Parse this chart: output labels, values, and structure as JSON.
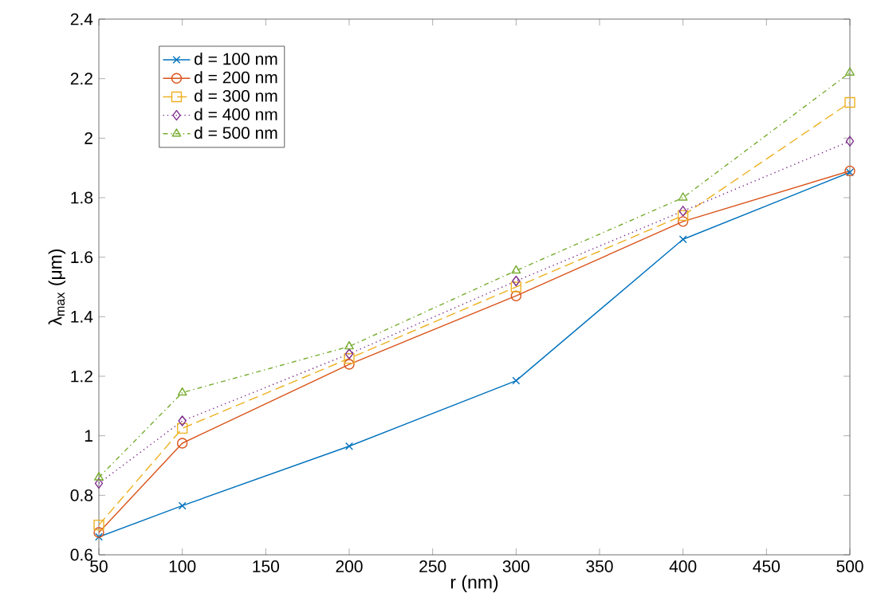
{
  "chart_data": {
    "type": "line",
    "xlabel": "r (nm)",
    "ylabel": "λ$_{max}$ (μm)",
    "x": [
      50,
      100,
      200,
      300,
      400,
      500
    ],
    "xlim": [
      50,
      500
    ],
    "xticks": [
      50,
      100,
      150,
      200,
      250,
      300,
      350,
      400,
      450,
      500
    ],
    "ylim": [
      0.6,
      2.4
    ],
    "yticks": [
      0.6,
      0.8,
      1,
      1.2,
      1.4,
      1.6,
      1.8,
      2,
      2.2,
      2.4
    ],
    "legend": "top left",
    "series": [
      {
        "name": "d = 100 nm",
        "color": "#0072bd",
        "marker": "cross",
        "line_style": "solid",
        "values": [
          0.66,
          0.765,
          0.965,
          1.185,
          1.66,
          1.885
        ]
      },
      {
        "name": "d = 200 nm",
        "color": "#d95319",
        "marker": "circle",
        "line_style": "solid",
        "values": [
          0.675,
          0.975,
          1.24,
          1.47,
          1.72,
          1.89
        ]
      },
      {
        "name": "d = 300 nm",
        "color": "#edb120",
        "marker": "square",
        "line_style": "dashed",
        "values": [
          0.7,
          1.025,
          1.26,
          1.5,
          1.74,
          2.12
        ]
      },
      {
        "name": "d = 400 nm",
        "color": "#7e2f8e",
        "marker": "diamond",
        "line_style": "dotted",
        "values": [
          0.84,
          1.05,
          1.275,
          1.52,
          1.755,
          1.99
        ]
      },
      {
        "name": "d = 500 nm",
        "color": "#77ac30",
        "marker": "triangle",
        "line_style": "dashdot",
        "values": [
          0.86,
          1.145,
          1.3,
          1.555,
          1.8,
          2.22
        ]
      }
    ]
  }
}
